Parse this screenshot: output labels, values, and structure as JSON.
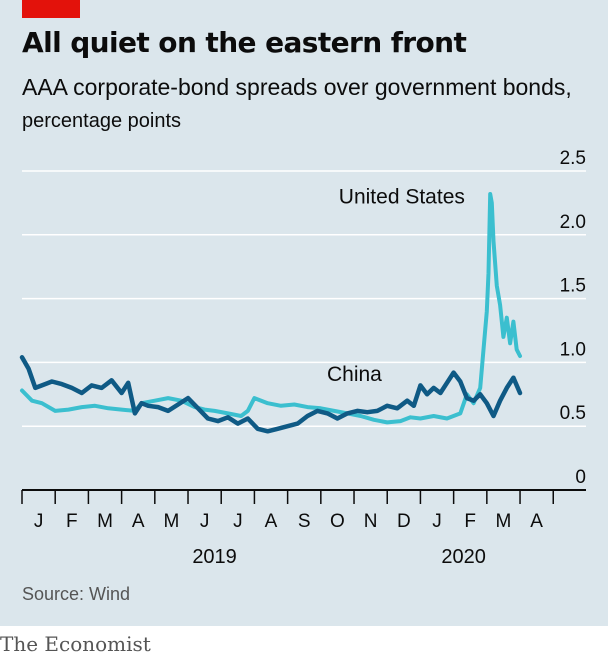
{
  "header": {
    "title": "All quiet on the eastern front",
    "subtitle_main": "AAA corporate-bond spreads over government bonds,",
    "subtitle_units": "percentage points"
  },
  "source": "Source: Wind",
  "footer": "The Economist",
  "colors": {
    "background": "#dbe6ec",
    "accent_red": "#e3120b",
    "china": "#0f5a85",
    "united_states": "#3bbfcf",
    "grid": "#ffffff",
    "axis": "#0c0c0c"
  },
  "chart_data": {
    "type": "line",
    "ylim": [
      0,
      2.5
    ],
    "y_ticks": [
      "2.5",
      "2.0",
      "1.5",
      "1.0",
      "0.5",
      "0"
    ],
    "y_tick_values": [
      2.5,
      2.0,
      1.5,
      1.0,
      0.5,
      0
    ],
    "x_range": [
      0,
      15.3
    ],
    "month_labels": [
      "J",
      "F",
      "M",
      "A",
      "M",
      "J",
      "J",
      "A",
      "S",
      "O",
      "N",
      "D",
      "J",
      "F",
      "M",
      "A"
    ],
    "year_labels": [
      {
        "label": "2019",
        "x": 5.8
      },
      {
        "label": "2020",
        "x": 13.3
      }
    ],
    "grid": true,
    "series": [
      {
        "name": "United States",
        "key": "united_states",
        "label_anchor": {
          "x": 13.7,
          "y": 2.34
        },
        "x": [
          0,
          0.3,
          0.6,
          1,
          1.4,
          1.8,
          2.2,
          2.6,
          3,
          3.4,
          3.6,
          4,
          4.4,
          4.8,
          5.2,
          5.5,
          5.8,
          6.2,
          6.6,
          6.8,
          7,
          7.4,
          7.8,
          8.2,
          8.6,
          9,
          9.4,
          9.8,
          10.2,
          10.6,
          11,
          11.4,
          11.7,
          12,
          12.4,
          12.8,
          13.2,
          13.4,
          13.6,
          13.8,
          13.9,
          14,
          14.05,
          14.1,
          14.15,
          14.2,
          14.3,
          14.4,
          14.5,
          14.6,
          14.7,
          14.8,
          14.9,
          15.0
        ],
        "values": [
          0.78,
          0.7,
          0.68,
          0.62,
          0.63,
          0.65,
          0.66,
          0.64,
          0.63,
          0.62,
          0.68,
          0.7,
          0.72,
          0.7,
          0.65,
          0.63,
          0.62,
          0.6,
          0.58,
          0.62,
          0.72,
          0.68,
          0.66,
          0.67,
          0.65,
          0.64,
          0.62,
          0.6,
          0.58,
          0.55,
          0.53,
          0.54,
          0.57,
          0.56,
          0.58,
          0.56,
          0.6,
          0.75,
          0.68,
          0.8,
          1.1,
          1.4,
          1.7,
          2.32,
          2.25,
          1.95,
          1.6,
          1.45,
          1.2,
          1.35,
          1.15,
          1.32,
          1.1,
          1.05
        ]
      },
      {
        "name": "China",
        "key": "china",
        "label_anchor": {
          "x": 11.2,
          "y": 0.95
        },
        "x": [
          0,
          0.2,
          0.4,
          0.6,
          0.9,
          1.2,
          1.5,
          1.8,
          2.1,
          2.4,
          2.7,
          3.0,
          3.2,
          3.4,
          3.6,
          3.8,
          4.1,
          4.4,
          4.7,
          5.0,
          5.3,
          5.6,
          5.9,
          6.2,
          6.5,
          6.8,
          7.1,
          7.4,
          7.7,
          8.0,
          8.3,
          8.6,
          8.9,
          9.2,
          9.5,
          9.8,
          10.1,
          10.4,
          10.7,
          11.0,
          11.3,
          11.6,
          11.8,
          12.0,
          12.2,
          12.4,
          12.6,
          12.8,
          13.0,
          13.2,
          13.4,
          13.6,
          13.8,
          14.0,
          14.2,
          14.4,
          14.6,
          14.8,
          15.0
        ],
        "values": [
          1.04,
          0.95,
          0.8,
          0.82,
          0.85,
          0.83,
          0.8,
          0.76,
          0.82,
          0.8,
          0.86,
          0.76,
          0.84,
          0.6,
          0.68,
          0.66,
          0.65,
          0.62,
          0.67,
          0.72,
          0.64,
          0.56,
          0.54,
          0.57,
          0.52,
          0.56,
          0.48,
          0.46,
          0.48,
          0.5,
          0.52,
          0.58,
          0.62,
          0.6,
          0.56,
          0.6,
          0.62,
          0.61,
          0.62,
          0.66,
          0.64,
          0.7,
          0.66,
          0.82,
          0.75,
          0.8,
          0.76,
          0.84,
          0.92,
          0.85,
          0.72,
          0.7,
          0.75,
          0.68,
          0.58,
          0.7,
          0.8,
          0.88,
          0.76
        ]
      }
    ]
  }
}
